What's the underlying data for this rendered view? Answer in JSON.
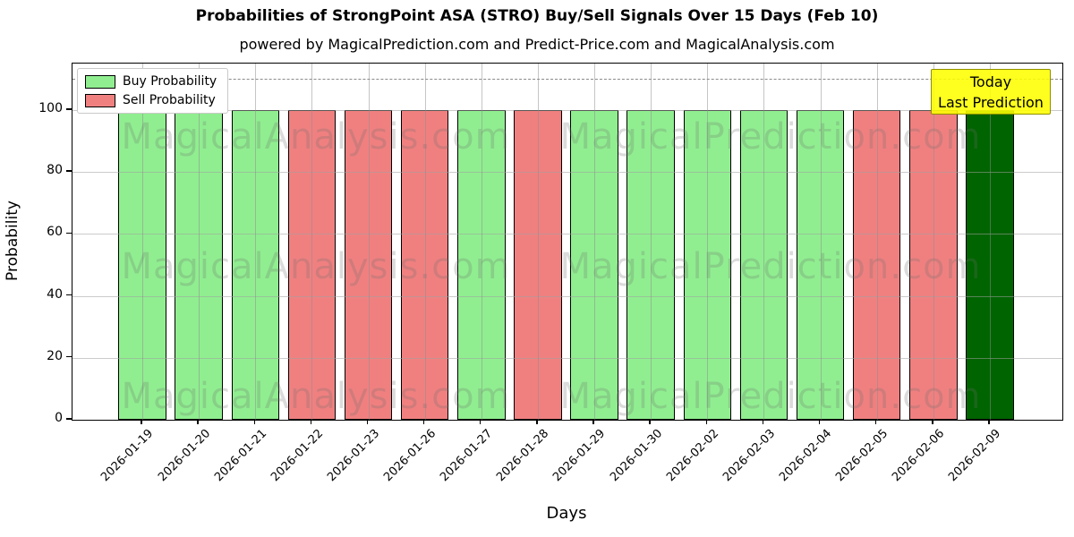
{
  "chart_data": {
    "type": "bar",
    "title": "Probabilities of StrongPoint ASA (STRO) Buy/Sell Signals Over 15 Days (Feb 10)",
    "subtitle": "powered by MagicalPrediction.com and Predict-Price.com and MagicalAnalysis.com",
    "xlabel": "Days",
    "ylabel": "Probability",
    "ylim": [
      0,
      115
    ],
    "yticks": [
      0,
      20,
      40,
      60,
      80,
      100
    ],
    "grid": true,
    "legend": {
      "position": "upper-left",
      "entries": [
        {
          "label": "Buy Probability",
          "color": "#90EE90"
        },
        {
          "label": "Sell Probability",
          "color": "#F08080"
        }
      ]
    },
    "threshold_line": {
      "value": 110,
      "style": "dashed",
      "color": "#8a8a8a"
    },
    "categories": [
      "2026-01-19",
      "2026-01-20",
      "2026-01-21",
      "2026-01-22",
      "2026-01-23",
      "2026-01-26",
      "2026-01-27",
      "2026-01-28",
      "2026-01-29",
      "2026-01-30",
      "2026-02-02",
      "2026-02-03",
      "2026-02-04",
      "2026-02-05",
      "2026-02-06",
      "2026-02-09"
    ],
    "bars": [
      {
        "date": "2026-01-19",
        "value": 100,
        "signal": "buy"
      },
      {
        "date": "2026-01-20",
        "value": 100,
        "signal": "buy"
      },
      {
        "date": "2026-01-21",
        "value": 100,
        "signal": "buy"
      },
      {
        "date": "2026-01-22",
        "value": 100,
        "signal": "sell"
      },
      {
        "date": "2026-01-23",
        "value": 100,
        "signal": "sell"
      },
      {
        "date": "2026-01-26",
        "value": 100,
        "signal": "sell"
      },
      {
        "date": "2026-01-27",
        "value": 100,
        "signal": "buy"
      },
      {
        "date": "2026-01-28",
        "value": 100,
        "signal": "sell"
      },
      {
        "date": "2026-01-29",
        "value": 100,
        "signal": "buy"
      },
      {
        "date": "2026-01-30",
        "value": 100,
        "signal": "buy"
      },
      {
        "date": "2026-02-02",
        "value": 100,
        "signal": "buy"
      },
      {
        "date": "2026-02-03",
        "value": 100,
        "signal": "buy"
      },
      {
        "date": "2026-02-04",
        "value": 100,
        "signal": "buy"
      },
      {
        "date": "2026-02-05",
        "value": 100,
        "signal": "sell"
      },
      {
        "date": "2026-02-06",
        "value": 100,
        "signal": "sell"
      },
      {
        "date": "2026-02-09",
        "value": 100,
        "signal": "today-buy"
      }
    ],
    "signal_colors": {
      "buy": "#90EE90",
      "sell": "#F08080",
      "today-buy": "#006400"
    },
    "annotation_box": {
      "lines": [
        "Today",
        "Last Prediction"
      ],
      "bg_color": "#FFFF00"
    },
    "watermarks": [
      "MagicalAnalysis.com",
      "MagicalPrediction.com"
    ]
  }
}
